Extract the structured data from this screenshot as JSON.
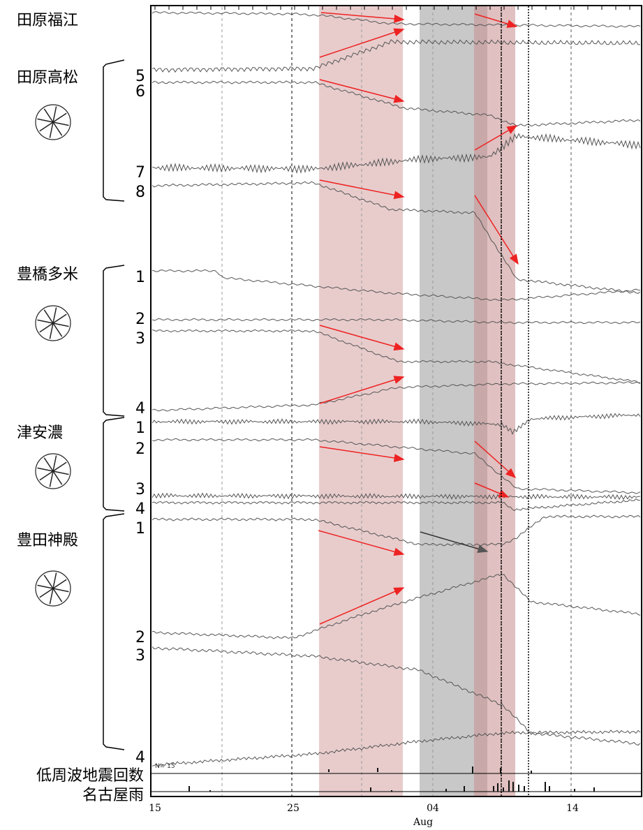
{
  "chart_data": {
    "type": "line",
    "title": "",
    "xlabel": "",
    "month_label": "Aug",
    "x_ticks": [
      "15",
      "25",
      "04",
      "14"
    ],
    "side_labels": {
      "lfe_count": "低周波地震回数",
      "rain": "名古屋雨"
    },
    "bottom_panel_text": "N=  15",
    "stations": [
      {
        "name": "田原福江",
        "channels": []
      },
      {
        "name": "田原高松",
        "channels": [
          "5",
          "6",
          "7",
          "8"
        ]
      },
      {
        "name": "豊橋多米",
        "channels": [
          "1",
          "2",
          "3",
          "4"
        ]
      },
      {
        "name": "津安濃",
        "channels": [
          "1",
          "2",
          "3",
          "4"
        ]
      },
      {
        "name": "豊田神殿",
        "channels": [
          "1",
          "2",
          "3",
          "4"
        ]
      }
    ],
    "highlight_periods": [
      {
        "color": "#e8c4c4",
        "meaning": "pink band",
        "start": "Jul 26",
        "end": "Aug 1"
      },
      {
        "color": "#c8c8c8",
        "meaning": "gray band",
        "start": "Aug 2",
        "end": "Aug 6"
      },
      {
        "color": "#d6b4b4",
        "meaning": "pink band",
        "start": "Aug 6",
        "end": "Aug 9"
      }
    ],
    "arrow_color": "#ee2222"
  }
}
